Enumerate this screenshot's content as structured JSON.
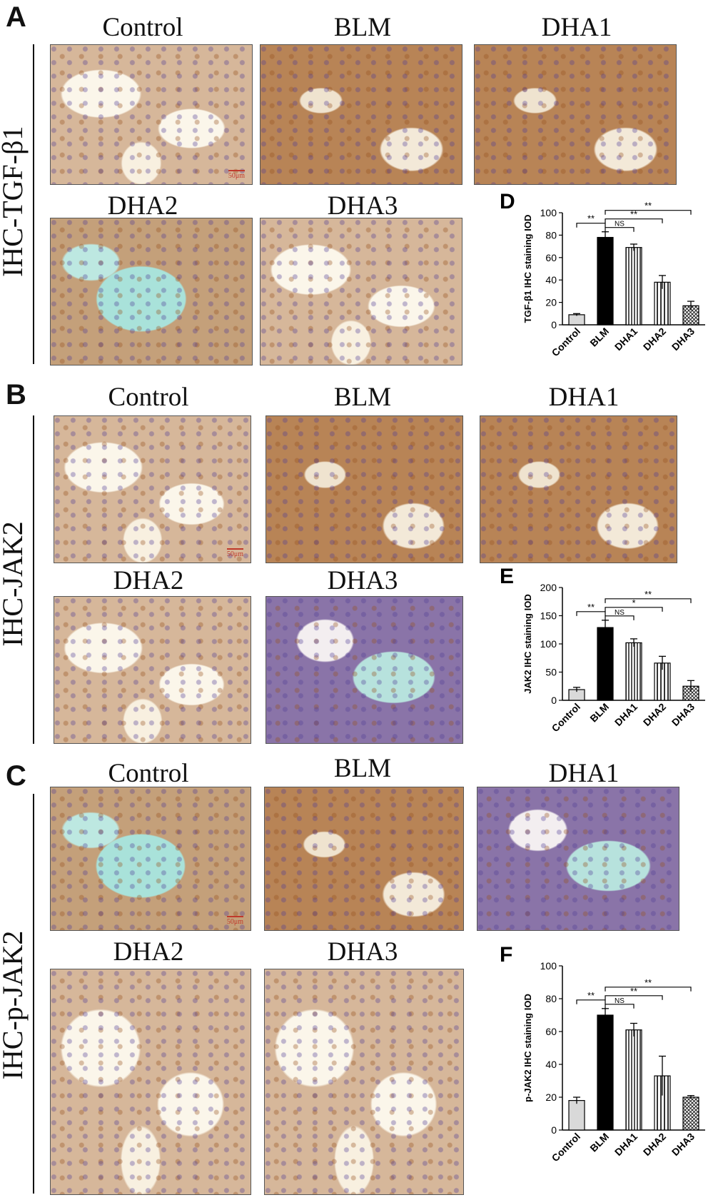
{
  "sections": [
    {
      "letter": "A",
      "label": "IHC-TGF-β1",
      "images": [
        {
          "title": "Control",
          "scale": "50μm",
          "tone": "light"
        },
        {
          "title": "BLM",
          "scale": "",
          "tone": "brown"
        },
        {
          "title": "DHA1",
          "scale": "",
          "tone": "brown"
        },
        {
          "title": "DHA2",
          "scale": "",
          "tone": "cyan"
        },
        {
          "title": "DHA3",
          "scale": "",
          "tone": "light"
        }
      ]
    },
    {
      "letter": "B",
      "label": "IHC-JAK2",
      "images": [
        {
          "title": "Control",
          "scale": "50μm",
          "tone": "light"
        },
        {
          "title": "BLM",
          "scale": "",
          "tone": "brown"
        },
        {
          "title": "DHA1",
          "scale": "",
          "tone": "brown"
        },
        {
          "title": "DHA2",
          "scale": "",
          "tone": "light"
        },
        {
          "title": "DHA3",
          "scale": "",
          "tone": "purple"
        }
      ]
    },
    {
      "letter": "C",
      "label": "IHC-p-JAK2",
      "images": [
        {
          "title": "Control",
          "scale": "50μm",
          "tone": "cyan"
        },
        {
          "title": "BLM",
          "scale": "",
          "tone": "brown"
        },
        {
          "title": "DHA1",
          "scale": "",
          "tone": "purple"
        },
        {
          "title": "DHA2",
          "scale": "",
          "tone": "light"
        },
        {
          "title": "DHA3",
          "scale": "",
          "tone": "light"
        }
      ]
    }
  ],
  "chart_data": [
    {
      "type": "bar",
      "panel": "D",
      "ylabel": "TGF-β1 IHC staining IOD",
      "categories": [
        "Control",
        "BLM",
        "DHA1",
        "DHA2",
        "DHA3"
      ],
      "values": [
        9,
        78,
        69,
        38,
        17
      ],
      "errors": [
        1,
        5,
        3,
        6,
        4
      ],
      "ylim": [
        0,
        100
      ],
      "yticks": [
        0,
        20,
        40,
        60,
        80,
        100
      ],
      "comparisons": [
        {
          "from": 0,
          "to": 1,
          "label": "**"
        },
        {
          "from": 1,
          "to": 2,
          "label": "NS"
        },
        {
          "from": 1,
          "to": 3,
          "label": "**"
        },
        {
          "from": 1,
          "to": 4,
          "label": "**"
        }
      ]
    },
    {
      "type": "bar",
      "panel": "E",
      "ylabel": "JAK2 IHC staining IOD",
      "categories": [
        "Control",
        "BLM",
        "DHA1",
        "DHA2",
        "DHA3"
      ],
      "values": [
        19,
        129,
        102,
        66,
        25
      ],
      "errors": [
        4,
        13,
        7,
        12,
        10
      ],
      "ylim": [
        0,
        200
      ],
      "yticks": [
        0,
        50,
        100,
        150,
        200
      ],
      "comparisons": [
        {
          "from": 0,
          "to": 1,
          "label": "**"
        },
        {
          "from": 1,
          "to": 2,
          "label": "NS"
        },
        {
          "from": 1,
          "to": 3,
          "label": "*"
        },
        {
          "from": 1,
          "to": 4,
          "label": "**"
        }
      ]
    },
    {
      "type": "bar",
      "panel": "F",
      "ylabel": "p-JAK2 IHC staining IOD",
      "categories": [
        "Control",
        "BLM",
        "DHA1",
        "DHA2",
        "DHA3"
      ],
      "values": [
        18,
        70,
        61,
        33,
        20
      ],
      "errors": [
        2,
        4,
        4,
        12,
        1
      ],
      "ylim": [
        0,
        100
      ],
      "yticks": [
        0,
        20,
        40,
        60,
        80,
        100
      ],
      "comparisons": [
        {
          "from": 0,
          "to": 1,
          "label": "**"
        },
        {
          "from": 1,
          "to": 2,
          "label": "NS"
        },
        {
          "from": 1,
          "to": 3,
          "label": "**"
        },
        {
          "from": 1,
          "to": 4,
          "label": "**"
        }
      ]
    }
  ]
}
